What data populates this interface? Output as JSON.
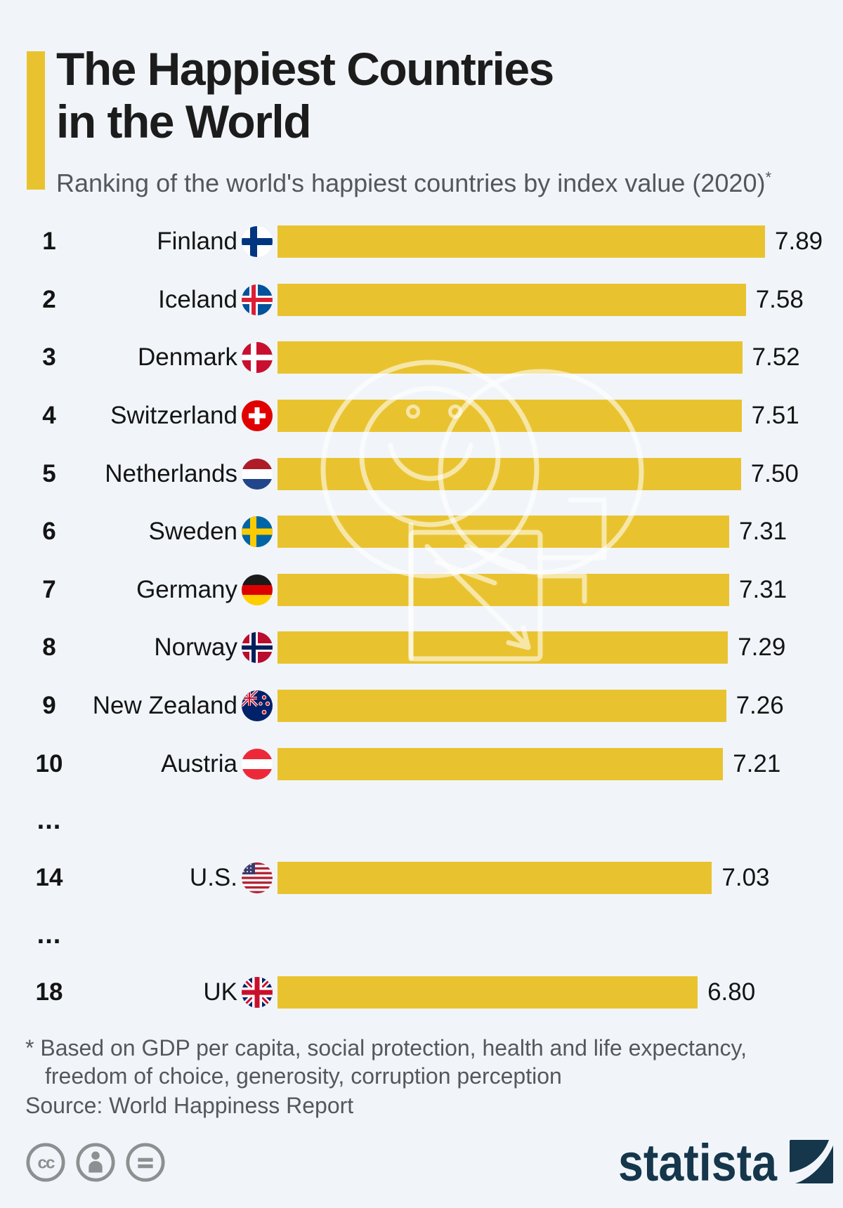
{
  "header": {
    "accent_color": "#e9c32f"
  },
  "chart_data": {
    "type": "bar",
    "orientation": "horizontal",
    "title": "The Happiest Countries in the World",
    "title_lines": [
      "The Happiest Countries",
      "in the World"
    ],
    "subtitle": "Ranking of the world's happiest countries by index value (2020)",
    "subtitle_marker": "*",
    "xlim": [
      0,
      7.89
    ],
    "bar_color": "#e9c32f",
    "grid": false,
    "legend": false,
    "categories": [
      "Finland",
      "Iceland",
      "Denmark",
      "Switzerland",
      "Netherlands",
      "Sweden",
      "Germany",
      "Norway",
      "New Zealand",
      "Austria",
      "U.S.",
      "UK"
    ],
    "values": [
      7.89,
      7.58,
      7.52,
      7.51,
      7.5,
      7.31,
      7.31,
      7.29,
      7.26,
      7.21,
      7.03,
      6.8
    ],
    "rows": [
      {
        "rank": "1",
        "country": "Finland",
        "flag": "fi",
        "value": 7.89,
        "value_label": "7.89"
      },
      {
        "rank": "2",
        "country": "Iceland",
        "flag": "is",
        "value": 7.58,
        "value_label": "7.58"
      },
      {
        "rank": "3",
        "country": "Denmark",
        "flag": "dk",
        "value": 7.52,
        "value_label": "7.52"
      },
      {
        "rank": "4",
        "country": "Switzerland",
        "flag": "ch",
        "value": 7.51,
        "value_label": "7.51"
      },
      {
        "rank": "5",
        "country": "Netherlands",
        "flag": "nl",
        "value": 7.5,
        "value_label": "7.50"
      },
      {
        "rank": "6",
        "country": "Sweden",
        "flag": "se",
        "value": 7.31,
        "value_label": "7.31"
      },
      {
        "rank": "7",
        "country": "Germany",
        "flag": "de",
        "value": 7.31,
        "value_label": "7.31"
      },
      {
        "rank": "8",
        "country": "Norway",
        "flag": "no",
        "value": 7.29,
        "value_label": "7.29"
      },
      {
        "rank": "9",
        "country": "New Zealand",
        "flag": "nz",
        "value": 7.26,
        "value_label": "7.26"
      },
      {
        "rank": "10",
        "country": "Austria",
        "flag": "at",
        "value": 7.21,
        "value_label": "7.21"
      },
      {
        "ellipsis": true,
        "label": "..."
      },
      {
        "rank": "14",
        "country": "U.S.",
        "flag": "us",
        "value": 7.03,
        "value_label": "7.03"
      },
      {
        "ellipsis": true,
        "label": "..."
      },
      {
        "rank": "18",
        "country": "UK",
        "flag": "gb",
        "value": 6.8,
        "value_label": "6.80"
      }
    ]
  },
  "footer": {
    "footnote_line1": "* Based on GDP per capita, social protection, health and life expectancy,",
    "footnote_line2": "freedom of choice, generosity, corruption perception",
    "source": "Source: World Happiness Report",
    "license_icons": [
      "cc-icon",
      "attribution-icon",
      "no-derivatives-icon"
    ],
    "brand": "statista"
  },
  "colors": {
    "background": "#f1f5f9",
    "bar_yellow": "#e9c32f",
    "text_ink": "#141414",
    "text_muted": "#55575c",
    "license_gray": "#8c9091",
    "brand_navy": "#15364b"
  }
}
